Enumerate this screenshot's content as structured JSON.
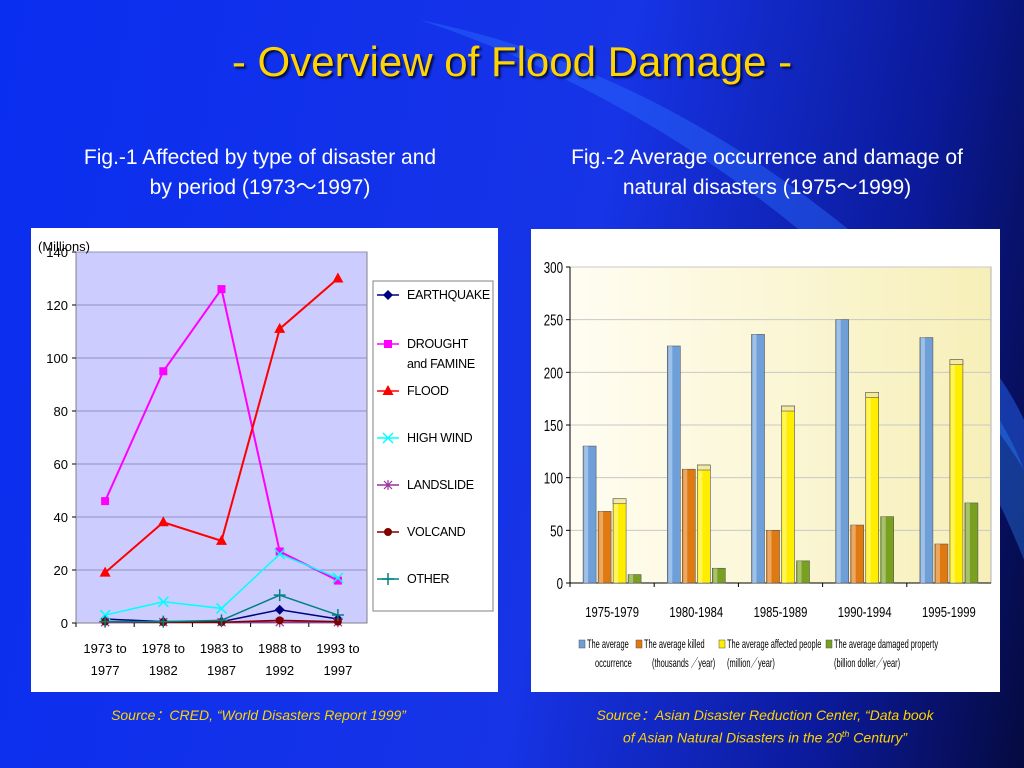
{
  "slide": {
    "title": "- Overview of Flood Damage -",
    "fig1_title_line1": "Fig.-1 Affected by type of disaster and",
    "fig1_title_line2": "by period (1973～1997)",
    "fig2_title_line1": "Fig.-2 Average occurrence and damage of",
    "fig2_title_line2": "natural disasters (1975～1999)",
    "fig1_source": "Source：CRED, “World Disasters Report 1999”",
    "fig2_source_line1": "Source：Asian Disaster Reduction Center, “Data book",
    "fig2_source_pre": "of Asian Natural Disasters in the 20",
    "fig2_source_sup": "th",
    "fig2_source_post": " Century”"
  },
  "colors": {
    "title": "#ffd400",
    "source": "#ffd400",
    "plot_bg": "#ccccff"
  },
  "chart_data": [
    {
      "type": "line",
      "unit_label": "(Millions)",
      "categories": [
        [
          "1973 to",
          "1977"
        ],
        [
          "1978 to",
          "1982"
        ],
        [
          "1983 to",
          "1987"
        ],
        [
          "1988 to",
          "1992"
        ],
        [
          "1993 to",
          "1997"
        ]
      ],
      "ylim": [
        0,
        140
      ],
      "yticks": [
        0,
        20,
        40,
        60,
        80,
        100,
        120,
        140
      ],
      "grid": true,
      "legend_position": "right",
      "series": [
        {
          "name": "EARTHQUAKE",
          "values": [
            1.5,
            0.5,
            0.5,
            5,
            1.5
          ],
          "color": "#000080",
          "marker": "diamond"
        },
        {
          "name": "DROUGHT and FAMINE",
          "legend_lines": [
            "DROUGHT",
            "and FAMINE"
          ],
          "values": [
            46,
            95,
            126,
            27,
            16
          ],
          "color": "#ff00ff",
          "marker": "square"
        },
        {
          "name": "FLOOD",
          "values": [
            19,
            38,
            31,
            111,
            130
          ],
          "color": "#ff0000",
          "marker": "triangle"
        },
        {
          "name": "HIGH WIND",
          "values": [
            3,
            8,
            5.5,
            26,
            17
          ],
          "color": "#00ffff",
          "marker": "x"
        },
        {
          "name": "LANDSLIDE",
          "values": [
            0.3,
            0.3,
            0.3,
            0.3,
            0.3
          ],
          "color": "#993399",
          "marker": "star"
        },
        {
          "name": "VOLCAND",
          "values": [
            0.5,
            0.3,
            0.3,
            1,
            0.5
          ],
          "color": "#800000",
          "marker": "circle"
        },
        {
          "name": "OTHER",
          "values": [
            0.5,
            0.5,
            1,
            10.5,
            3
          ],
          "color": "#008080",
          "marker": "plus"
        }
      ]
    },
    {
      "type": "bar",
      "categories": [
        "1975-1979",
        "1980-1984",
        "1985-1989",
        "1990-1994",
        "1995-1999"
      ],
      "ylim": [
        0,
        300
      ],
      "yticks": [
        0,
        50,
        100,
        150,
        200,
        250,
        300
      ],
      "grid": true,
      "legend_position": "bottom",
      "series": [
        {
          "name": "The average occurrence",
          "legend_lines": [
            "The average",
            "occurrence"
          ],
          "values": [
            130,
            225,
            236,
            250,
            233
          ],
          "color": "#6f9fd8"
        },
        {
          "name": "The average killed (thousands/year)",
          "legend_lines": [
            "The average killed",
            "(thousands ／year)"
          ],
          "values": [
            68,
            108,
            50,
            55,
            37
          ],
          "color": "#e07a10"
        },
        {
          "name": "The average affected people (million/year)",
          "legend_lines": [
            "The   average affected people",
            "(million／year)"
          ],
          "values": [
            80,
            112,
            168,
            181,
            212
          ],
          "color": "#ffee00"
        },
        {
          "name": "The average damaged property (billion dollar/year)",
          "legend_lines": [
            "The average damaged property",
            "(billion doller／year)"
          ],
          "values": [
            8,
            14,
            21,
            63,
            76
          ],
          "color": "#7aa020"
        }
      ]
    }
  ]
}
